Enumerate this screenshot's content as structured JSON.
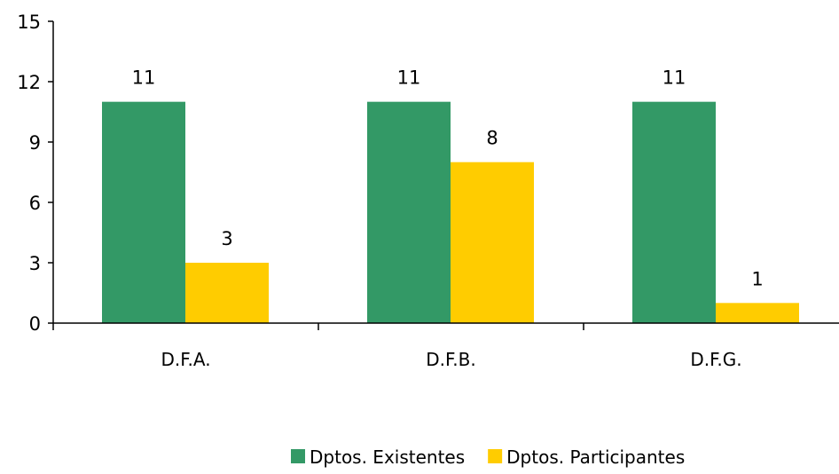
{
  "chart_data": {
    "type": "bar",
    "categories": [
      "D.F.A.",
      "D.F.B.",
      "D.F.G."
    ],
    "series": [
      {
        "name": "Dptos. Existentes",
        "values": [
          11,
          11,
          11
        ],
        "color": "#339966"
      },
      {
        "name": "Dptos. Participantes",
        "values": [
          3,
          8,
          1
        ],
        "color": "#FFCC00"
      }
    ],
    "ylim": [
      0,
      15
    ],
    "yticks": [
      0,
      3,
      6,
      9,
      12,
      15
    ],
    "grid": false,
    "legend_position": "bottom",
    "data_labels": true
  }
}
